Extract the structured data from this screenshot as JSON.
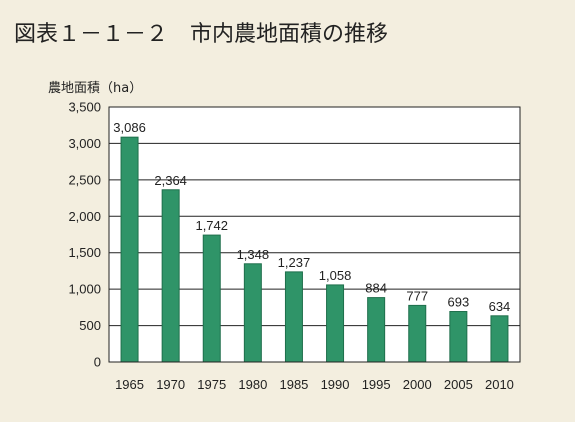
{
  "figure_title": "図表１－１－２　市内農地面積の推移",
  "colors": {
    "background": "#f3eedf",
    "plot_background": "#ffffff",
    "bar": "#2f9468",
    "bar_stroke": "#1f6f4c",
    "grid": "#222222",
    "text": "#222222"
  },
  "chart_data": {
    "type": "bar",
    "title": "",
    "xlabel": "",
    "ylabel": "農地面積（ha）",
    "categories": [
      "1965",
      "1970",
      "1975",
      "1980",
      "1985",
      "1990",
      "1995",
      "2000",
      "2005",
      "2010"
    ],
    "values": [
      3086,
      2364,
      1742,
      1348,
      1237,
      1058,
      884,
      777,
      693,
      634
    ],
    "data_labels": [
      "3,086",
      "2,364",
      "1,742",
      "1,348",
      "1,237",
      "1,058",
      "884",
      "777",
      "693",
      "634"
    ],
    "ylim": [
      0,
      3500
    ],
    "yticks": [
      0,
      500,
      1000,
      1500,
      2000,
      2500,
      3000,
      3500
    ],
    "ytick_labels": [
      "0",
      "500",
      "1,000",
      "1,500",
      "2,000",
      "2,500",
      "3,000",
      "3,500"
    ],
    "grid": true,
    "legend": "none"
  }
}
